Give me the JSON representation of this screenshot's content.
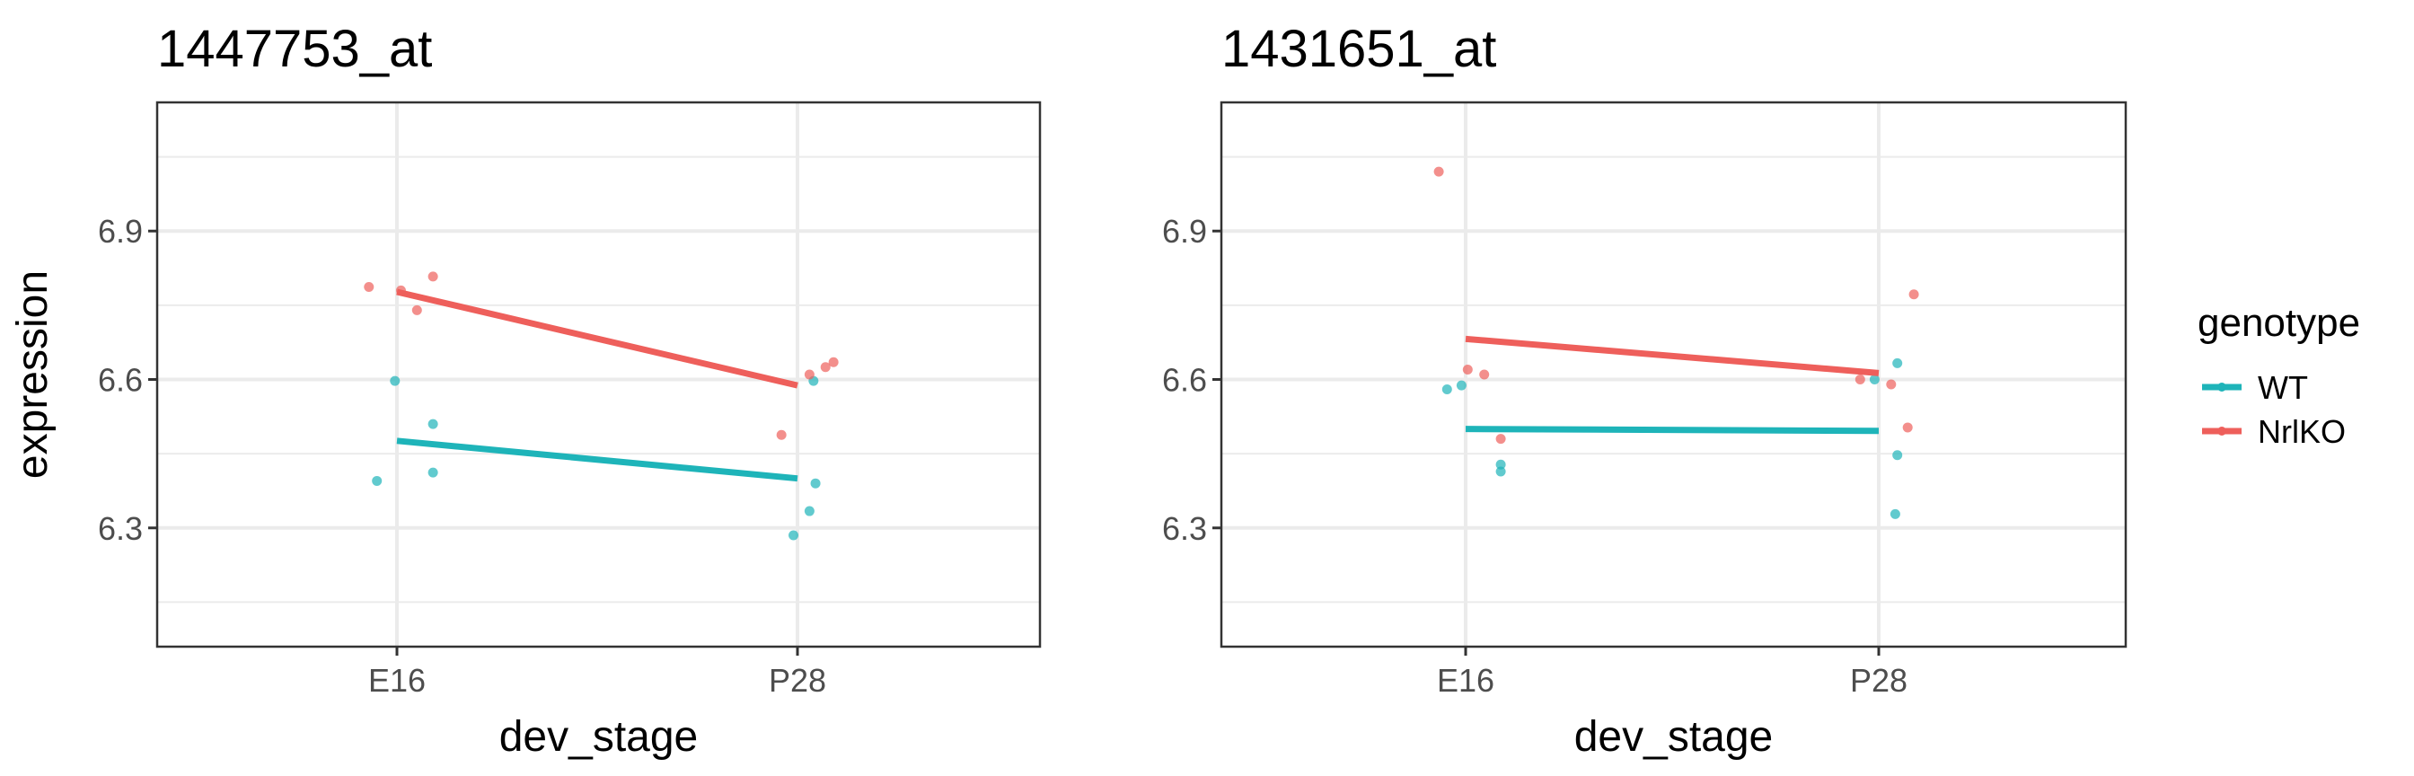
{
  "chart_data": [
    {
      "type": "line",
      "title": "1447753_at",
      "xlabel": "dev_stage",
      "ylabel": "expression",
      "categories": [
        "E16",
        "P28"
      ],
      "ylim": [
        6.06,
        7.16
      ],
      "yticks": [
        6.3,
        6.6,
        6.9
      ],
      "grid": true,
      "series": [
        {
          "name": "WT",
          "line": [
            6.476,
            6.4
          ],
          "points": [
            {
              "x": "E16",
              "jitter": -0.05,
              "y": 6.395
            },
            {
              "x": "E16",
              "jitter": -0.005,
              "y": 6.597
            },
            {
              "x": "E16",
              "jitter": 0.09,
              "y": 6.51
            },
            {
              "x": "E16",
              "jitter": 0.09,
              "y": 6.412
            },
            {
              "x": "P28",
              "jitter": -0.01,
              "y": 6.285
            },
            {
              "x": "P28",
              "jitter": 0.03,
              "y": 6.334
            },
            {
              "x": "P28",
              "jitter": 0.045,
              "y": 6.39
            },
            {
              "x": "P28",
              "jitter": 0.04,
              "y": 6.597
            }
          ]
        },
        {
          "name": "NrlKO",
          "line": [
            6.777,
            6.588
          ],
          "points": [
            {
              "x": "E16",
              "jitter": -0.07,
              "y": 6.787
            },
            {
              "x": "E16",
              "jitter": 0.01,
              "y": 6.78
            },
            {
              "x": "E16",
              "jitter": 0.05,
              "y": 6.74
            },
            {
              "x": "E16",
              "jitter": 0.09,
              "y": 6.808
            },
            {
              "x": "P28",
              "jitter": -0.04,
              "y": 6.488
            },
            {
              "x": "P28",
              "jitter": 0.03,
              "y": 6.61
            },
            {
              "x": "P28",
              "jitter": 0.07,
              "y": 6.625
            },
            {
              "x": "P28",
              "jitter": 0.09,
              "y": 6.635
            }
          ]
        }
      ]
    },
    {
      "type": "line",
      "title": "1431651_at",
      "xlabel": "dev_stage",
      "ylabel": "",
      "categories": [
        "E16",
        "P28"
      ],
      "ylim": [
        6.06,
        7.16
      ],
      "yticks": [
        6.3,
        6.6,
        6.9
      ],
      "grid": true,
      "series": [
        {
          "name": "WT",
          "line": [
            6.5,
            6.496
          ],
          "points": [
            {
              "x": "E16",
              "jitter": -0.045,
              "y": 6.58
            },
            {
              "x": "E16",
              "jitter": -0.01,
              "y": 6.588
            },
            {
              "x": "E16",
              "jitter": 0.085,
              "y": 6.428
            },
            {
              "x": "E16",
              "jitter": 0.085,
              "y": 6.414
            },
            {
              "x": "P28",
              "jitter": -0.01,
              "y": 6.6
            },
            {
              "x": "P28",
              "jitter": 0.04,
              "y": 6.328
            },
            {
              "x": "P28",
              "jitter": 0.045,
              "y": 6.447
            },
            {
              "x": "P28",
              "jitter": 0.045,
              "y": 6.633
            }
          ]
        },
        {
          "name": "NrlKO",
          "line": [
            6.682,
            6.613
          ],
          "points": [
            {
              "x": "E16",
              "jitter": -0.065,
              "y": 7.02
            },
            {
              "x": "E16",
              "jitter": 0.005,
              "y": 6.62
            },
            {
              "x": "E16",
              "jitter": 0.045,
              "y": 6.61
            },
            {
              "x": "E16",
              "jitter": 0.085,
              "y": 6.48
            },
            {
              "x": "P28",
              "jitter": -0.045,
              "y": 6.6
            },
            {
              "x": "P28",
              "jitter": 0.03,
              "y": 6.59
            },
            {
              "x": "P28",
              "jitter": 0.07,
              "y": 6.503
            },
            {
              "x": "P28",
              "jitter": 0.085,
              "y": 6.772
            }
          ]
        }
      ]
    }
  ],
  "legend": {
    "title": "genotype",
    "placement": "right",
    "items": [
      {
        "label": "WT",
        "color": "#1eb4b9"
      },
      {
        "label": "NrlKO",
        "color": "#ee5f5b"
      }
    ]
  }
}
